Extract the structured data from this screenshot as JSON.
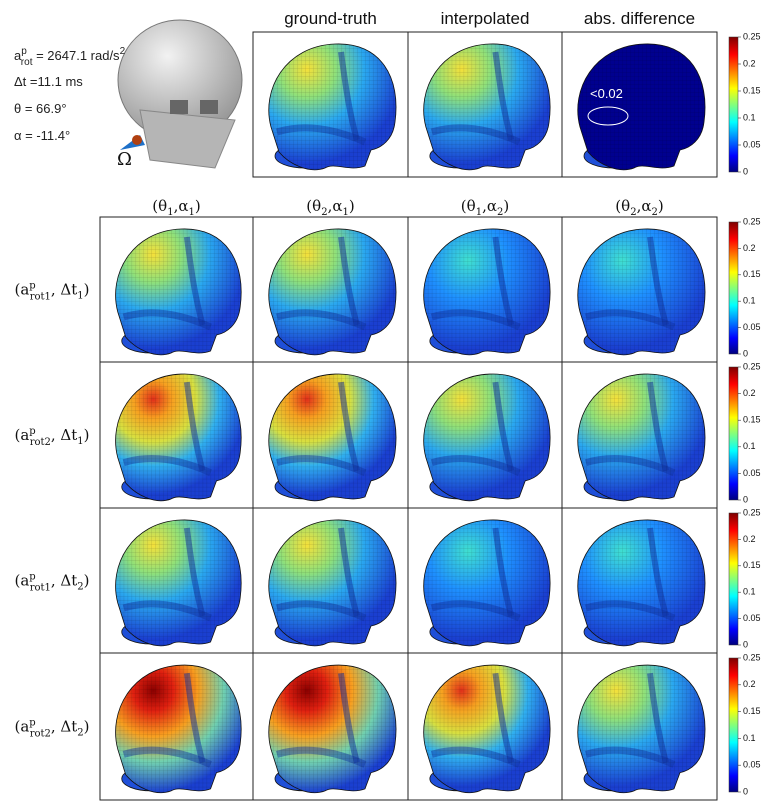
{
  "parameters": {
    "a_rot": {
      "pre": "a",
      "sup": "p",
      "sub": "rot",
      "mid": " = 2647.1 rad/s",
      "sup2": "2"
    },
    "dt": "Δt =11.1 ms",
    "theta": "θ = 66.9°",
    "alpha": "α = -11.4°"
  },
  "omega": "Ω",
  "top_titles": [
    "ground-truth",
    "interpolated",
    "abs. difference"
  ],
  "difference_note": "<0.02",
  "column_headers": [
    {
      "pre": "(θ",
      "sub": "1",
      "mid": ",α",
      "sub2": "1",
      "post": ")"
    },
    {
      "pre": "(θ",
      "sub": "2",
      "mid": ",α",
      "sub2": "1",
      "post": ")"
    },
    {
      "pre": "(θ",
      "sub": "1",
      "mid": ",α",
      "sub2": "2",
      "post": ")"
    },
    {
      "pre": "(θ",
      "sub": "2",
      "mid": ",α",
      "sub2": "2",
      "post": ")"
    }
  ],
  "row_labels": [
    {
      "pre": "(a",
      "sup": "p",
      "sub": "rot1",
      "mid": ", Δt",
      "sub2": "1",
      "post": ")"
    },
    {
      "pre": "(a",
      "sup": "p",
      "sub": "rot2",
      "mid": ", Δt",
      "sub2": "1",
      "post": ")"
    },
    {
      "pre": "(a",
      "sup": "p",
      "sub": "rot1",
      "mid": ", Δt",
      "sub2": "2",
      "post": ")"
    },
    {
      "pre": "(a",
      "sup": "p",
      "sub": "rot2",
      "mid": ", Δt",
      "sub2": "2",
      "post": ")"
    }
  ],
  "colorbar": {
    "lim": [
      0,
      0.25
    ],
    "ticks": [
      0,
      0.05,
      0.1,
      0.15,
      0.2,
      0.25
    ]
  }
}
